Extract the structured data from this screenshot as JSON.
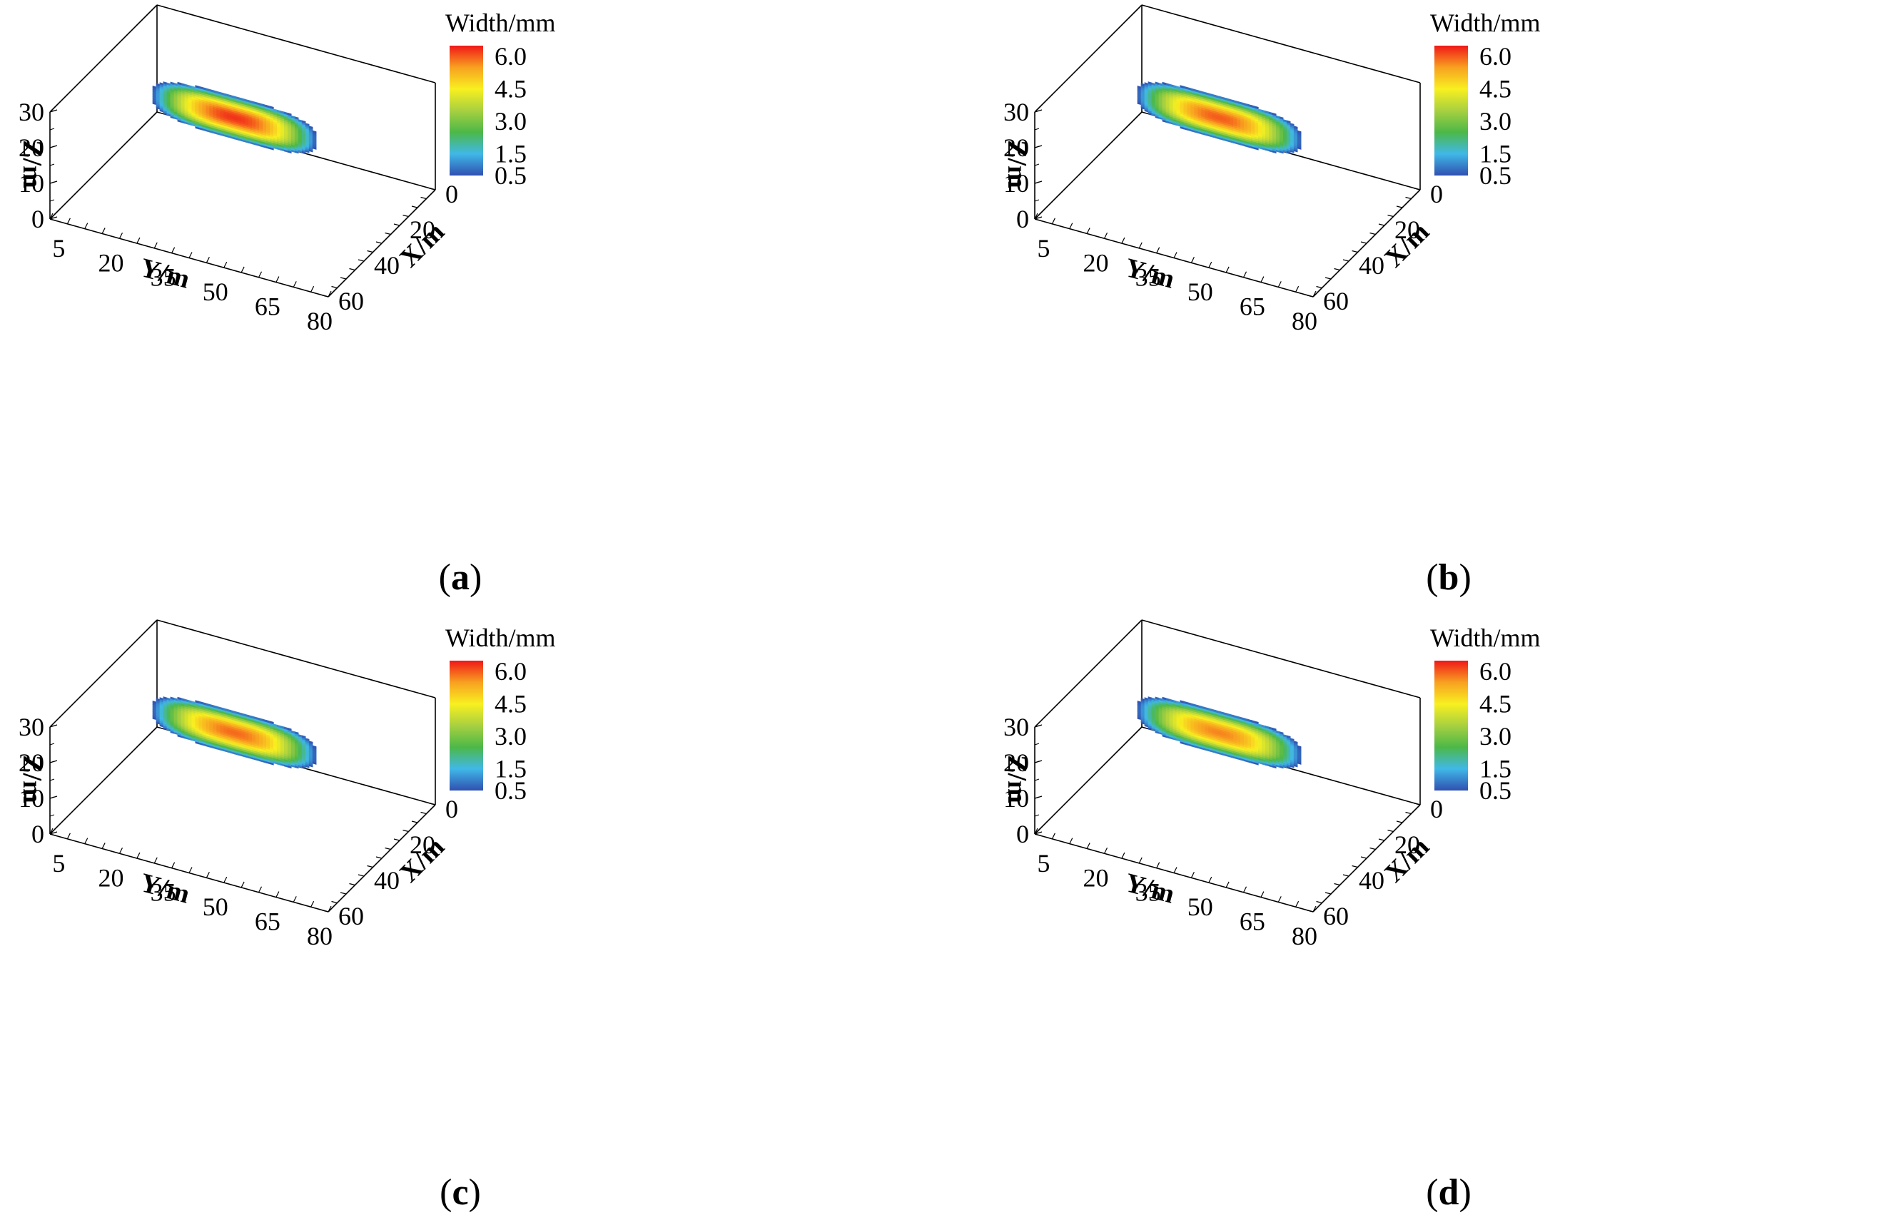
{
  "chart_data": [
    {
      "panel": "a",
      "type": "heatmap",
      "title": "",
      "label": "a",
      "xlabel": "X/m",
      "ylabel": "Y/m",
      "zlabel": "Z/m",
      "x_ticks": [
        "0",
        "20",
        "40",
        "60"
      ],
      "y_ticks": [
        "5",
        "20",
        "35",
        "50",
        "65",
        "80"
      ],
      "z_ticks": [
        "0",
        "10",
        "20",
        "30"
      ],
      "xlim": [
        0,
        60
      ],
      "ylim": [
        0,
        80
      ],
      "zlim": [
        0,
        30
      ],
      "colorbar_title": "Width/mm",
      "colorbar_ticks": [
        "6.0",
        "4.5",
        "3.0",
        "1.5",
        "0.5"
      ],
      "colorbar_range": [
        0.5,
        6.5
      ],
      "fracture": {
        "y_range": [
          8,
          55
        ],
        "z_range": [
          10,
          22
        ],
        "max_width": 6.3,
        "center_y": 30,
        "center_z": 17
      }
    },
    {
      "panel": "b",
      "type": "heatmap",
      "title": "",
      "label": "b",
      "xlabel": "X/m",
      "ylabel": "Y/m",
      "zlabel": "Z/m",
      "x_ticks": [
        "0",
        "20",
        "40",
        "60"
      ],
      "y_ticks": [
        "5",
        "20",
        "35",
        "50",
        "65",
        "80"
      ],
      "z_ticks": [
        "0",
        "10",
        "20",
        "30"
      ],
      "xlim": [
        0,
        60
      ],
      "ylim": [
        0,
        80
      ],
      "zlim": [
        0,
        30
      ],
      "colorbar_title": "Width/mm",
      "colorbar_ticks": [
        "6.0",
        "4.5",
        "3.0",
        "1.5",
        "0.5"
      ],
      "colorbar_range": [
        0.5,
        6.5
      ],
      "fracture": {
        "y_range": [
          8,
          55
        ],
        "z_range": [
          10,
          22
        ],
        "max_width": 6.0,
        "center_y": 30,
        "center_z": 17
      }
    },
    {
      "panel": "c",
      "type": "heatmap",
      "title": "",
      "label": "c",
      "xlabel": "X/m",
      "ylabel": "Y/m",
      "zlabel": "Z/m",
      "x_ticks": [
        "0",
        "20",
        "40",
        "60"
      ],
      "y_ticks": [
        "5",
        "20",
        "35",
        "50",
        "65",
        "80"
      ],
      "z_ticks": [
        "0",
        "10",
        "20",
        "30"
      ],
      "xlim": [
        0,
        60
      ],
      "ylim": [
        0,
        80
      ],
      "zlim": [
        0,
        30
      ],
      "colorbar_title": "Width/mm",
      "colorbar_ticks": [
        "6.0",
        "4.5",
        "3.0",
        "1.5",
        "0.5"
      ],
      "colorbar_range": [
        0.5,
        6.5
      ],
      "fracture": {
        "y_range": [
          8,
          55
        ],
        "z_range": [
          10,
          22
        ],
        "max_width": 5.9,
        "center_y": 30,
        "center_z": 17
      }
    },
    {
      "panel": "d",
      "type": "heatmap",
      "title": "",
      "label": "d",
      "xlabel": "X/m",
      "ylabel": "Y/m",
      "zlabel": "Z/m",
      "x_ticks": [
        "0",
        "20",
        "40",
        "60"
      ],
      "y_ticks": [
        "5",
        "20",
        "35",
        "50",
        "65",
        "80"
      ],
      "z_ticks": [
        "0",
        "10",
        "20",
        "30"
      ],
      "xlim": [
        0,
        60
      ],
      "ylim": [
        0,
        80
      ],
      "zlim": [
        0,
        30
      ],
      "colorbar_title": "Width/mm",
      "colorbar_ticks": [
        "6.0",
        "4.5",
        "3.0",
        "1.5",
        "0.5"
      ],
      "colorbar_range": [
        0.5,
        6.5
      ],
      "fracture": {
        "y_range": [
          8,
          55
        ],
        "z_range": [
          10,
          22
        ],
        "max_width": 5.7,
        "center_y": 30,
        "center_z": 17
      }
    }
  ],
  "colormap": [
    "#3050b0",
    "#40b8e8",
    "#4cb848",
    "#a8d040",
    "#f8f020",
    "#f8a020",
    "#f01818"
  ]
}
